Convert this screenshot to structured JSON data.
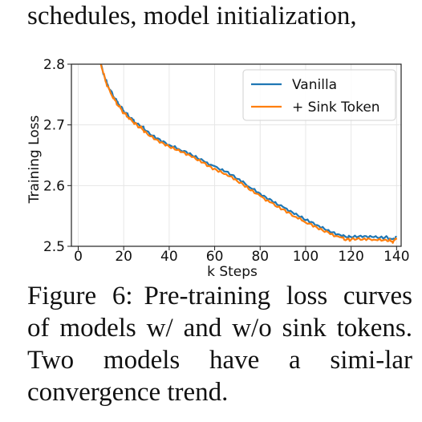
{
  "top_text": "schedules, model initialization,",
  "caption": {
    "label": "Figure 6:",
    "text": "Pre-training loss curves of models w/ and w/o sink tokens. Two models have a simi-lar convergence trend."
  },
  "colors": {
    "vanilla": "#1f77b4",
    "sink": "#ff7f0e",
    "grid": "#e6e6e6",
    "axis": "#222222"
  },
  "chart_data": {
    "type": "line",
    "title": "",
    "xlabel": "k Steps",
    "ylabel": "Training Loss",
    "xlim": [
      -3,
      142
    ],
    "ylim": [
      2.5,
      2.8
    ],
    "xticks": [
      0,
      20,
      40,
      60,
      80,
      100,
      120,
      140
    ],
    "yticks": [
      2.5,
      2.6,
      2.7,
      2.8
    ],
    "ytick_labels": [
      "2.5",
      "2.6",
      "2.7",
      "2.8"
    ],
    "grid": true,
    "legend": "top-right",
    "series": [
      {
        "name": "Vanilla",
        "color": "#1f77b4",
        "x": [
          10,
          12,
          14,
          16,
          18,
          20,
          22,
          24,
          26,
          28,
          30,
          35,
          40,
          45,
          50,
          55,
          60,
          65,
          70,
          75,
          80,
          85,
          90,
          95,
          100,
          105,
          110,
          115,
          118,
          120,
          125,
          130,
          135,
          138,
          140
        ],
        "y": [
          2.8,
          2.774,
          2.758,
          2.744,
          2.733,
          2.723,
          2.715,
          2.708,
          2.702,
          2.697,
          2.69,
          2.678,
          2.667,
          2.658,
          2.65,
          2.641,
          2.632,
          2.623,
          2.611,
          2.598,
          2.587,
          2.576,
          2.565,
          2.553,
          2.543,
          2.535,
          2.527,
          2.519,
          2.515,
          2.515,
          2.515,
          2.515,
          2.515,
          2.512,
          2.515
        ]
      },
      {
        "name": "+ Sink Token",
        "color": "#ff7f0e",
        "x": [
          10,
          12,
          14,
          16,
          18,
          20,
          22,
          24,
          26,
          28,
          30,
          35,
          40,
          45,
          50,
          55,
          60,
          65,
          70,
          75,
          80,
          85,
          90,
          95,
          100,
          105,
          110,
          115,
          118,
          120,
          125,
          130,
          135,
          138,
          140
        ],
        "y": [
          2.8,
          2.772,
          2.755,
          2.741,
          2.73,
          2.72,
          2.712,
          2.705,
          2.699,
          2.694,
          2.687,
          2.675,
          2.664,
          2.655,
          2.647,
          2.638,
          2.628,
          2.619,
          2.607,
          2.594,
          2.583,
          2.572,
          2.561,
          2.549,
          2.539,
          2.531,
          2.523,
          2.515,
          2.511,
          2.511,
          2.511,
          2.511,
          2.511,
          2.508,
          2.511
        ]
      }
    ]
  }
}
